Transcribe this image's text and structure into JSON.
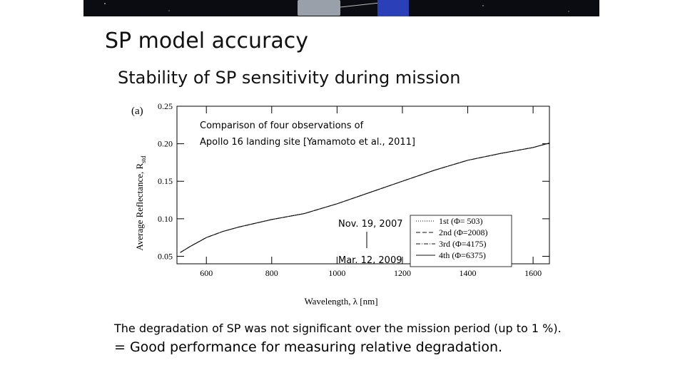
{
  "slide": {
    "title": "SP model accuracy",
    "subtitle": "Stability of SP sensitivity during mission",
    "note_line1": "The degradation of SP was not significant over the mission period (up to 1 %).",
    "note_line2": "= Good performance for measuring relative degradation."
  },
  "colors": {
    "banner": "#0b0b12",
    "solar_panel": "#2b3fb8",
    "spacecraft": "#9aa0aa"
  },
  "chart_data": {
    "type": "line",
    "panel_label": "(a)",
    "xlabel": "Wavelength, λ [nm]",
    "ylabel": "Average Reflectance, R",
    "ylabel_subscript": "std",
    "xlim": [
      510,
      1650
    ],
    "ylim": [
      0.04,
      0.25
    ],
    "xticks": [
      600,
      800,
      1000,
      1200,
      1400,
      1600
    ],
    "yticks": [
      0.05,
      0.1,
      0.15,
      0.2,
      0.25
    ],
    "ytick_labels": [
      "0.05",
      "0.10",
      "0.15",
      "0.20",
      "0.25"
    ],
    "grid": false,
    "annotation_text_1": "Comparison of four observations of",
    "annotation_text_2": "Apollo 16 landing site [Yamamoto et al., 2011]",
    "date_top": "Nov. 19, 2007",
    "date_bottom": "Mar. 12, 2009",
    "legend_position": "lower-right",
    "series": [
      {
        "name": "1st (Φ= 503)",
        "style": "dotted",
        "x": [
          520,
          550,
          600,
          650,
          700,
          800,
          900,
          1000,
          1100,
          1200,
          1300,
          1400,
          1500,
          1600,
          1650
        ],
        "y": [
          0.055,
          0.063,
          0.075,
          0.083,
          0.089,
          0.099,
          0.107,
          0.12,
          0.135,
          0.15,
          0.165,
          0.178,
          0.187,
          0.195,
          0.201
        ]
      },
      {
        "name": "2nd (Φ=2008)",
        "style": "dashed",
        "x": [
          520,
          550,
          600,
          650,
          700,
          800,
          900,
          1000,
          1100,
          1200,
          1300,
          1400,
          1500,
          1600,
          1650
        ],
        "y": [
          0.055,
          0.063,
          0.075,
          0.083,
          0.089,
          0.099,
          0.107,
          0.12,
          0.135,
          0.15,
          0.165,
          0.178,
          0.187,
          0.195,
          0.201
        ]
      },
      {
        "name": "3rd (Φ=4175)",
        "style": "dashdot",
        "x": [
          520,
          550,
          600,
          650,
          700,
          800,
          900,
          1000,
          1100,
          1200,
          1300,
          1400,
          1500,
          1600,
          1650
        ],
        "y": [
          0.055,
          0.063,
          0.075,
          0.083,
          0.089,
          0.099,
          0.107,
          0.12,
          0.135,
          0.15,
          0.165,
          0.178,
          0.187,
          0.195,
          0.201
        ]
      },
      {
        "name": "4th (Φ=6375)",
        "style": "solid",
        "x": [
          520,
          550,
          600,
          650,
          700,
          800,
          900,
          1000,
          1100,
          1200,
          1300,
          1400,
          1500,
          1600,
          1650
        ],
        "y": [
          0.055,
          0.063,
          0.075,
          0.083,
          0.089,
          0.099,
          0.107,
          0.12,
          0.135,
          0.15,
          0.165,
          0.178,
          0.187,
          0.195,
          0.201
        ]
      }
    ]
  }
}
